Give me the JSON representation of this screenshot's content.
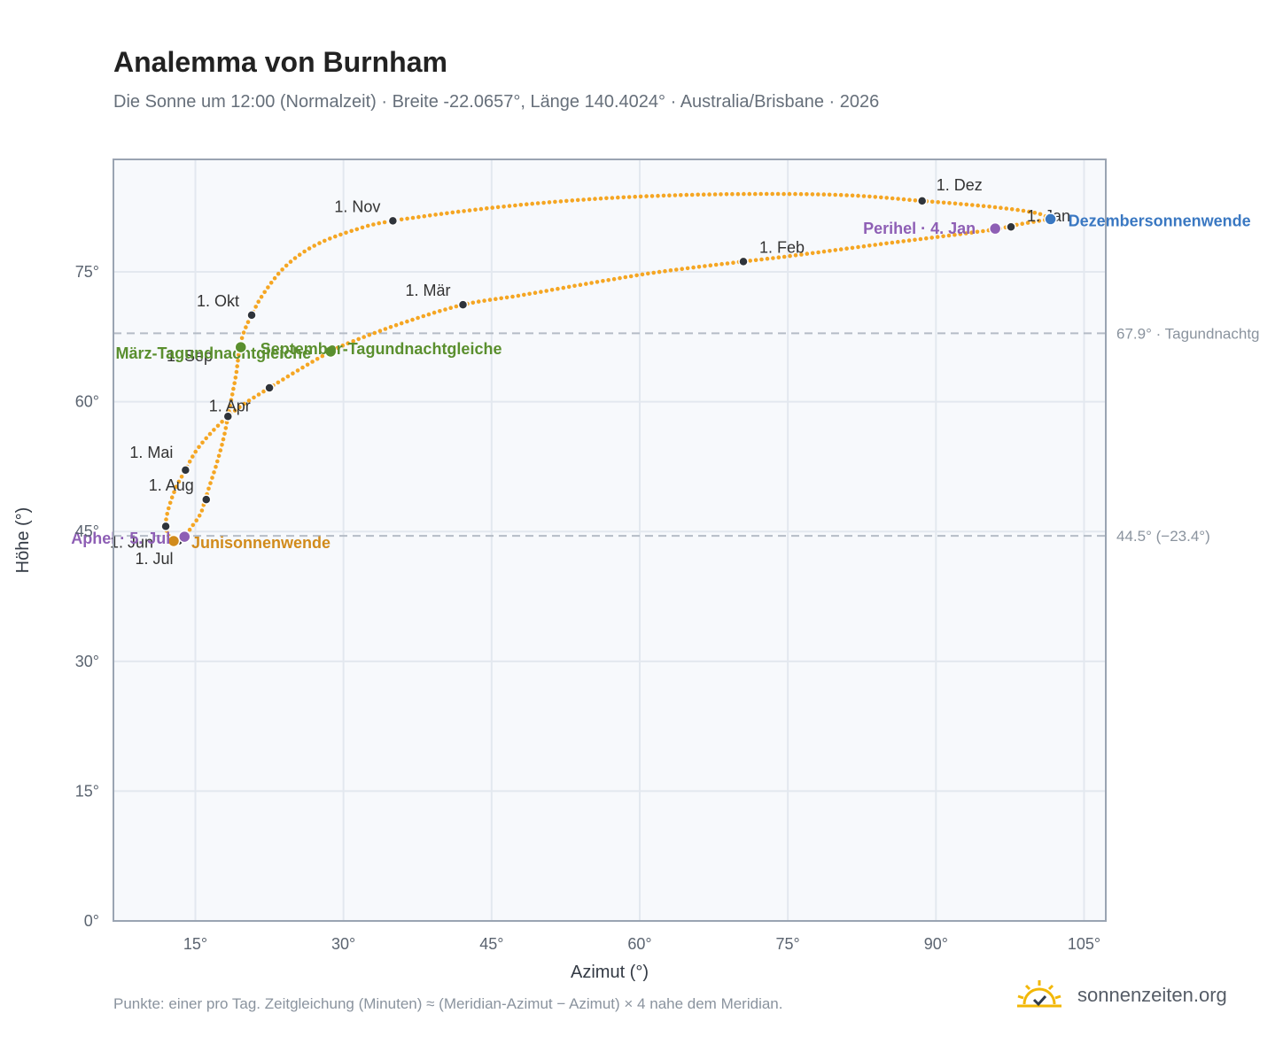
{
  "header": {
    "title": "Analemma von Burnham",
    "subtitle": "Die Sonne um 12:00 (Normalzeit) · Breite -22.0657°, Länge 140.4024° · Australia/Brisbane · 2026"
  },
  "footer": {
    "note": "Punkte: einer pro Tag. Zeitgleichung (Minuten) ≈ (Meridian-Azimut − Azimut) × 4 nahe dem Meridian.",
    "brand": "sonnenzeiten.org",
    "logo_icon": "sun-check-icon"
  },
  "colors": {
    "curve": "#f5a623",
    "month_dot": "#2f343b",
    "equinox": "#5a8f2e",
    "solstice_june": "#d18b1c",
    "solstice_dec": "#3a78c2",
    "aphelion": "#8e5fb5",
    "perihelion": "#8e5fb5",
    "plot_bg": "#f7f9fc",
    "grid": "#e3e8ef",
    "frame": "#9aa4b2",
    "refline": "#b5bcc6"
  },
  "chart_data": {
    "type": "scatter",
    "xlabel": "Azimut (°)",
    "ylabel": "Höhe (°)",
    "xlim": [
      6.7,
      107.2
    ],
    "ylim": [
      0,
      88
    ],
    "xticks": [
      {
        "value": 15,
        "label": "15°"
      },
      {
        "value": 30,
        "label": "30°"
      },
      {
        "value": 45,
        "label": "45°"
      },
      {
        "value": 60,
        "label": "60°"
      },
      {
        "value": 75,
        "label": "75°"
      },
      {
        "value": 90,
        "label": "90°"
      },
      {
        "value": 105,
        "label": "105°"
      }
    ],
    "yticks": [
      {
        "value": 0,
        "label": "0°"
      },
      {
        "value": 15,
        "label": "15°"
      },
      {
        "value": 30,
        "label": "30°"
      },
      {
        "value": 45,
        "label": "45°"
      },
      {
        "value": 60,
        "label": "60°"
      },
      {
        "value": 75,
        "label": "75°"
      }
    ],
    "grid": true,
    "reference_lines": [
      {
        "y": 67.9,
        "label": "67.9° · Tagundnachtg"
      },
      {
        "y": 44.5,
        "label": "44.5° (−23.4°)"
      }
    ],
    "curve_knots": [
      [
        101.6,
        81.1
      ],
      [
        101.0,
        81.0
      ],
      [
        97.5,
        80.3
      ],
      [
        96.5,
        80.0
      ],
      [
        92.0,
        79.3
      ],
      [
        85.0,
        78.3
      ],
      [
        75.0,
        76.8
      ],
      [
        70.5,
        76.2
      ],
      [
        62.0,
        75.0
      ],
      [
        55.0,
        73.7
      ],
      [
        48.0,
        72.3
      ],
      [
        42.1,
        71.2
      ],
      [
        36.0,
        69.1
      ],
      [
        31.0,
        67.0
      ],
      [
        28.7,
        65.8
      ],
      [
        25.5,
        63.7
      ],
      [
        22.5,
        61.6
      ],
      [
        20.0,
        59.8
      ],
      [
        18.3,
        58.3
      ],
      [
        16.5,
        56.3
      ],
      [
        15.0,
        54.2
      ],
      [
        14.0,
        52.1
      ],
      [
        13.0,
        50.0
      ],
      [
        12.2,
        47.3
      ],
      [
        12.0,
        45.6
      ],
      [
        12.3,
        44.5
      ],
      [
        12.7,
        43.9
      ],
      [
        13.3,
        43.9
      ],
      [
        13.9,
        44.4
      ],
      [
        14.6,
        45.5
      ],
      [
        15.5,
        47.0
      ],
      [
        16.0,
        48.7
      ],
      [
        16.5,
        50.5
      ],
      [
        17.2,
        53.0
      ],
      [
        17.9,
        56.0
      ],
      [
        18.5,
        59.5
      ],
      [
        19.1,
        63.0
      ],
      [
        19.5,
        66.3
      ],
      [
        20.0,
        68.3
      ],
      [
        20.7,
        70.0
      ],
      [
        21.8,
        72.3
      ],
      [
        24.0,
        75.5
      ],
      [
        27.0,
        78.0
      ],
      [
        31.0,
        79.8
      ],
      [
        35.0,
        80.9
      ],
      [
        45.0,
        82.4
      ],
      [
        55.0,
        83.4
      ],
      [
        65.0,
        83.9
      ],
      [
        75.0,
        84.0
      ],
      [
        82.0,
        83.8
      ],
      [
        88.6,
        83.2
      ],
      [
        94.0,
        82.7
      ],
      [
        98.0,
        82.2
      ],
      [
        100.5,
        81.7
      ],
      [
        101.6,
        81.1
      ]
    ],
    "month_points": [
      {
        "label": "1. Jan",
        "x": 97.6,
        "y": 80.2
      },
      {
        "label": "1. Feb",
        "x": 70.5,
        "y": 76.2
      },
      {
        "label": "1. Mär",
        "x": 42.1,
        "y": 71.2
      },
      {
        "label": "1. Apr",
        "x": 18.3,
        "y": 58.3
      },
      {
        "label": "1. Mai",
        "x": 14.0,
        "y": 52.1
      },
      {
        "label": "1. Jun",
        "x": 12.0,
        "y": 45.6
      },
      {
        "label": "1. Jul",
        "x": 13.3,
        "y": 43.9
      },
      {
        "label": "1. Aug",
        "x": 16.1,
        "y": 48.7
      },
      {
        "label": "1. Sep",
        "x": 22.5,
        "y": 61.6
      },
      {
        "label": "1. Okt",
        "x": 20.7,
        "y": 70.0
      },
      {
        "label": "1. Nov",
        "x": 35.0,
        "y": 80.9
      },
      {
        "label": "1. Dez",
        "x": 88.6,
        "y": 83.2
      }
    ],
    "events": [
      {
        "label": "Dezembersonnenwende",
        "x": 101.6,
        "y": 81.1,
        "color_key": "solstice_dec"
      },
      {
        "label": "Perihel · 4. Jan",
        "x": 96.0,
        "y": 80.0,
        "color_key": "perihelion"
      },
      {
        "label": "März-Tagundnachtgleiche",
        "x": 28.7,
        "y": 65.8,
        "color_key": "equinox"
      },
      {
        "label": "September-Tagundnachtgleiche",
        "x": 19.6,
        "y": 66.3,
        "color_key": "equinox"
      },
      {
        "label": "Junisonnenwende",
        "x": 12.8,
        "y": 43.9,
        "color_key": "solstice_june"
      },
      {
        "label": "Aphel · 5. Jul",
        "x": 13.9,
        "y": 44.4,
        "color_key": "aphelion"
      }
    ]
  }
}
